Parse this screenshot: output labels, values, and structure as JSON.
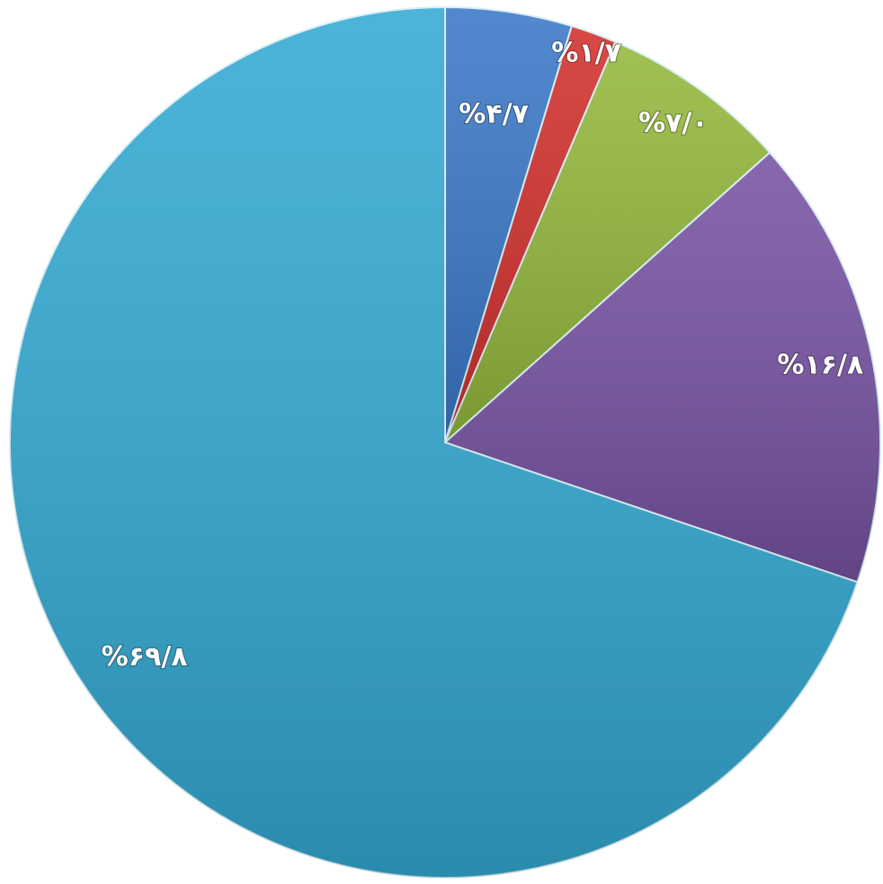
{
  "chart_data": {
    "type": "pie",
    "categories": [
      null,
      null,
      null,
      null,
      null
    ],
    "values": [
      4.7,
      1.7,
      7.0,
      16.8,
      69.8
    ],
    "value_labels": [
      "%۴/۷",
      "%۱/۷",
      "%۷/۰",
      "%۱۶/۸",
      "%۶۹/۸"
    ],
    "colors": [
      "#3b78c8",
      "#d2302c",
      "#93b83c",
      "#7753a3",
      "#33aad3"
    ],
    "start_angle": 0,
    "direction": "clockwise"
  }
}
